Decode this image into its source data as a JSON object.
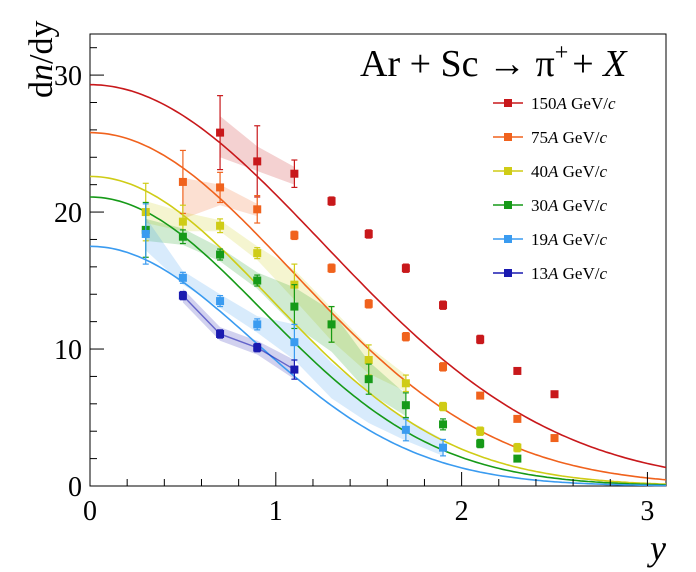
{
  "chart_data": {
    "type": "scatter",
    "title_parts": {
      "lhs": "Ar + Sc",
      "arrow": "→",
      "pi": "π",
      "charge": "+",
      "rest": "+ ",
      "x": "X"
    },
    "ylabel": {
      "d1": "d",
      "n": "n",
      "rest": "/dy"
    },
    "xlabel": "y",
    "xlim": [
      0,
      3.1
    ],
    "ylim": [
      0,
      33
    ],
    "xticks": [
      0,
      1,
      2,
      3
    ],
    "yticks": [
      0,
      10,
      20,
      30
    ],
    "grid": false,
    "legend_position": "top-right",
    "series": [
      {
        "name_num": "150",
        "name_a": "A",
        "name_unit": " GeV/",
        "name_c": "c",
        "color": "#c8181b",
        "fit_y0": 29.3,
        "fit_sigma": 1.25,
        "x": [
          0.7,
          0.9,
          1.1,
          1.3,
          1.5,
          1.7,
          1.9,
          2.1,
          2.3,
          2.5
        ],
        "y": [
          25.8,
          23.7,
          22.8,
          20.8,
          18.4,
          15.9,
          13.2,
          10.7,
          8.4,
          6.7
        ],
        "err": [
          2.7,
          2.6,
          1.0,
          0.3,
          0.3,
          0.3,
          0.3,
          0.3,
          0.2,
          0.2
        ],
        "band": [
          [
            0.7,
            27.0,
            24.0
          ],
          [
            0.9,
            24.8,
            23.0
          ],
          [
            1.1,
            23.3,
            22.0
          ]
        ]
      },
      {
        "name_num": "75",
        "name_a": "A",
        "name_unit": " GeV/",
        "name_c": "c",
        "color": "#f0621d",
        "fit_y0": 25.8,
        "fit_sigma": 1.09,
        "x": [
          0.5,
          0.7,
          0.9,
          1.1,
          1.3,
          1.5,
          1.7,
          1.9,
          2.1,
          2.3,
          2.5
        ],
        "y": [
          22.2,
          21.8,
          20.2,
          18.3,
          15.9,
          13.3,
          10.9,
          8.7,
          6.6,
          4.9,
          3.5
        ],
        "err": [
          2.3,
          1.1,
          1.0,
          0.3,
          0.3,
          0.3,
          0.3,
          0.3,
          0.2,
          0.2,
          0.2
        ],
        "band": [
          [
            0.5,
            22.5,
            19.5
          ],
          [
            0.7,
            22.0,
            20.5
          ],
          [
            0.9,
            20.6,
            19.7
          ]
        ]
      },
      {
        "name_num": "40",
        "name_a": "A",
        "name_unit": " GeV/",
        "name_c": "c",
        "color": "#cfcc16",
        "fit_y0": 22.6,
        "fit_sigma": 0.97,
        "x": [
          0.3,
          0.5,
          0.7,
          0.9,
          1.1,
          1.3,
          1.5,
          1.7,
          1.9,
          2.1,
          2.3
        ],
        "y": [
          20.0,
          19.3,
          19.0,
          17.0,
          14.7,
          11.8,
          9.2,
          7.5,
          5.8,
          4.0,
          2.8
        ],
        "err": [
          2.1,
          1.2,
          0.5,
          0.4,
          1.5,
          1.3,
          1.1,
          0.6,
          0.3,
          0.3,
          0.3
        ],
        "band": [
          [
            0.3,
            20.8,
            19.2
          ],
          [
            0.5,
            20.0,
            18.6
          ],
          [
            0.7,
            19.4,
            18.6
          ],
          [
            0.9,
            17.5,
            16.5
          ],
          [
            1.1,
            15.8,
            13.6
          ],
          [
            1.3,
            13.0,
            10.6
          ],
          [
            1.5,
            10.2,
            8.2
          ],
          [
            1.7,
            8.1,
            6.9
          ]
        ]
      },
      {
        "name_num": "30",
        "name_a": "A",
        "name_unit": " GeV/",
        "name_c": "c",
        "color": "#169a18",
        "fit_y0": 21.1,
        "fit_sigma": 0.93,
        "x": [
          0.3,
          0.5,
          0.7,
          0.9,
          1.1,
          1.3,
          1.5,
          1.7,
          1.9,
          2.1,
          2.3
        ],
        "y": [
          18.7,
          18.2,
          16.9,
          15.0,
          13.1,
          11.8,
          7.8,
          5.9,
          4.5,
          3.1,
          2.0
        ],
        "err": [
          2.0,
          0.5,
          0.4,
          0.4,
          1.6,
          1.3,
          1.1,
          0.9,
          0.4,
          0.3,
          0.2
        ],
        "band": [
          [
            0.3,
            19.5,
            17.9
          ],
          [
            0.5,
            18.8,
            17.6
          ],
          [
            0.7,
            17.4,
            16.4
          ],
          [
            0.9,
            15.6,
            14.4
          ],
          [
            1.1,
            14.5,
            11.7
          ],
          [
            1.3,
            12.8,
            9.8
          ],
          [
            1.5,
            9.1,
            6.8
          ],
          [
            1.7,
            6.7,
            5.1
          ]
        ]
      },
      {
        "name_num": "19",
        "name_a": "A",
        "name_unit": " GeV/",
        "name_c": "c",
        "color": "#3a9bf0",
        "fit_y0": 17.5,
        "fit_sigma": 0.88,
        "x": [
          0.3,
          0.5,
          0.7,
          0.9,
          1.1,
          1.7,
          1.9
        ],
        "y": [
          18.4,
          15.2,
          13.5,
          11.8,
          10.5,
          4.1,
          2.8
        ],
        "err": [
          2.2,
          0.4,
          0.4,
          0.4,
          1.3,
          0.8,
          0.6
        ],
        "band": [
          [
            0.3,
            19.6,
            17.2
          ],
          [
            0.5,
            15.7,
            14.7
          ],
          [
            0.7,
            14.0,
            13.0
          ],
          [
            0.9,
            12.4,
            11.2
          ],
          [
            1.1,
            11.8,
            9.2
          ],
          [
            1.3,
            9.0,
            6.4
          ],
          [
            1.5,
            6.8,
            4.6
          ],
          [
            1.7,
            4.9,
            3.3
          ],
          [
            1.9,
            3.4,
            2.2
          ]
        ]
      },
      {
        "name_num": "13",
        "name_a": "A",
        "name_unit": " GeV/",
        "name_c": "c",
        "color": "#1a1ab0",
        "fit_y0": null,
        "fit_sigma": null,
        "x": [
          0.5,
          0.7,
          0.9,
          1.1
        ],
        "y": [
          13.9,
          11.1,
          10.1,
          8.5
        ],
        "err": [
          0.3,
          0.3,
          0.3,
          0.7
        ],
        "band": [
          [
            0.5,
            14.4,
            13.4
          ],
          [
            0.7,
            11.6,
            10.6
          ],
          [
            0.9,
            10.6,
            9.6
          ],
          [
            1.1,
            9.2,
            7.8
          ]
        ]
      }
    ]
  }
}
